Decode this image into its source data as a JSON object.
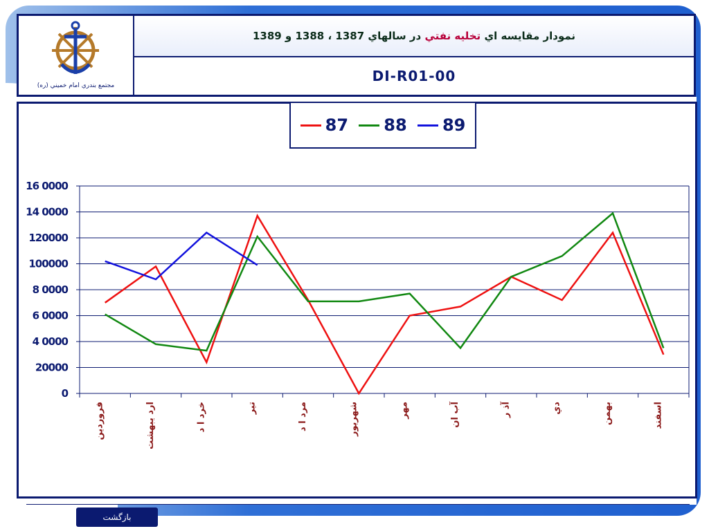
{
  "header": {
    "title_part1": "نمودار مقايسه اي",
    "title_part2": "تخليه نفتي",
    "title_part3": "در سالهاي 1387 ، 1388 و 1389",
    "code": "DI-R01-00",
    "logo_caption": "مجتمع بندري امام خميني (ره)"
  },
  "footer": {
    "back_label": "بازگشت"
  },
  "colors": {
    "frame": "#0b1a70",
    "s87": "#ee1111",
    "s88": "#118811",
    "s89": "#1111dd",
    "axis_text_x": "#8b1a1a"
  },
  "chart_data": {
    "type": "line",
    "title": "",
    "xlabel": "",
    "ylabel": "",
    "ylim": [
      0,
      160000
    ],
    "yticks": [
      0,
      20000,
      40000,
      60000,
      80000,
      100000,
      120000,
      140000,
      160000
    ],
    "ytick_labels": [
      "0",
      "20000",
      "4 0000",
      "6 0000",
      "8 0000",
      "100000",
      "120000",
      "14 0000",
      "16 0000"
    ],
    "grid": true,
    "legend_position": "top-center",
    "categories": [
      "فروردين",
      "ارديبهشت",
      "خرداد",
      "تير",
      "مرداد",
      "شهريور",
      "مهر",
      "آبان",
      "آذر",
      "دي",
      "بهمن",
      "اسفند"
    ],
    "category_labels": [
      "فروردين",
      "ارد يبهشت",
      "خرد ا د",
      "تير",
      "مرد ا د",
      "شهريور",
      "مهر",
      "آب ان",
      "آذ ر",
      "دي",
      "بهمن",
      "اسفند"
    ],
    "series": [
      {
        "name": "87",
        "color": "#ee1111",
        "values": [
          70000,
          98000,
          24000,
          137000,
          72000,
          0,
          60000,
          67000,
          90000,
          72000,
          124000,
          30000
        ]
      },
      {
        "name": "88",
        "color": "#118811",
        "values": [
          61000,
          38000,
          33000,
          121000,
          71000,
          71000,
          77000,
          35000,
          90000,
          106000,
          139000,
          35000
        ]
      },
      {
        "name": "89",
        "color": "#1111dd",
        "values": [
          102000,
          88000,
          124000,
          99000,
          null,
          null,
          null,
          null,
          null,
          null,
          null,
          null
        ]
      }
    ]
  }
}
